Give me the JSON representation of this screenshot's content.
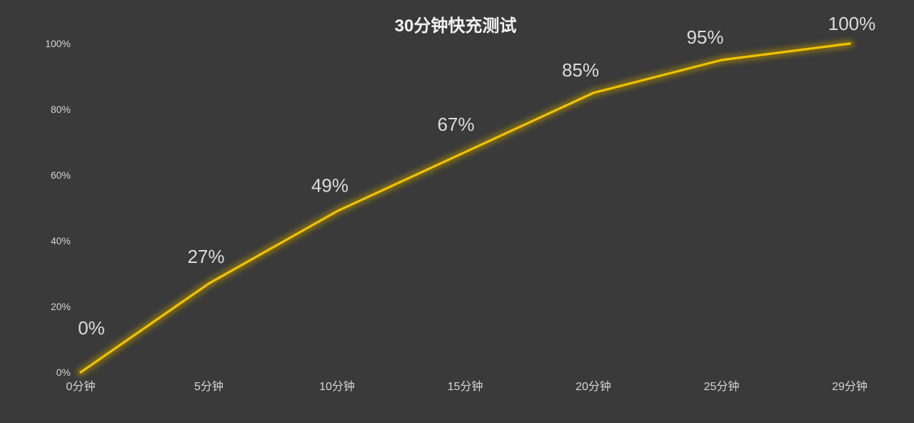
{
  "chart_data": {
    "type": "line",
    "title": "30分钟快充测试",
    "categories": [
      "0分钟",
      "5分钟",
      "10分钟",
      "15分钟",
      "20分钟",
      "25分钟",
      "29分钟"
    ],
    "values": [
      0,
      27,
      49,
      67,
      85,
      95,
      100
    ],
    "data_labels": [
      "0%",
      "27%",
      "49%",
      "67%",
      "85%",
      "95%",
      "100%"
    ],
    "ylim": [
      0,
      100
    ],
    "yticks": [
      0,
      20,
      40,
      60,
      80,
      100
    ],
    "ytick_labels": [
      "0%",
      "20%",
      "40%",
      "60%",
      "80%",
      "100%"
    ],
    "grid": false,
    "legend": "none",
    "markers": false
  },
  "colors": {
    "background": "#3a3a3a",
    "line": "#f2c200",
    "glow": "#a88c08",
    "title": "#f2f2f2",
    "tick_text": "#d4d4d4",
    "data_label_text": "#dcdcdc"
  }
}
